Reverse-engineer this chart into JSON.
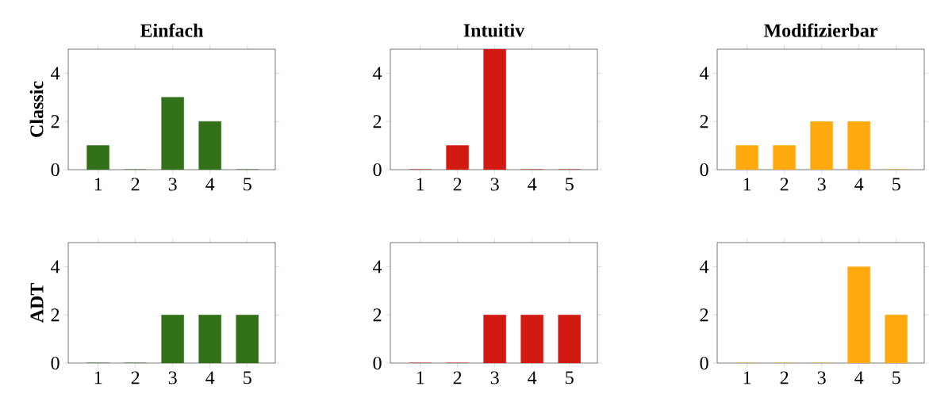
{
  "chart_data": [
    {
      "type": "bar",
      "title": "Einfach",
      "ylabel": "Classic",
      "x": [
        1,
        2,
        3,
        4,
        5
      ],
      "values": [
        1,
        0,
        3,
        2,
        0
      ],
      "color": "#33701a",
      "xlim": [
        0.2,
        5.75
      ],
      "ylim": [
        0,
        5
      ],
      "xticks": [
        1,
        2,
        3,
        4,
        5
      ],
      "yticks": [
        0,
        2,
        4
      ]
    },
    {
      "type": "bar",
      "title": "Intuitiv",
      "x": [
        1,
        2,
        3,
        4,
        5
      ],
      "values": [
        0,
        1,
        5,
        0,
        0
      ],
      "color": "#d31a12",
      "xlim": [
        0.2,
        5.75
      ],
      "ylim": [
        0,
        5
      ],
      "xticks": [
        1,
        2,
        3,
        4,
        5
      ],
      "yticks": [
        0,
        2,
        4
      ]
    },
    {
      "type": "bar",
      "title": "Modifizierbar",
      "x": [
        1,
        2,
        3,
        4,
        5
      ],
      "values": [
        1,
        1,
        2,
        2,
        0
      ],
      "color": "#ffa90d",
      "xlim": [
        0.2,
        5.75
      ],
      "ylim": [
        0,
        5
      ],
      "xticks": [
        1,
        2,
        3,
        4,
        5
      ],
      "yticks": [
        0,
        2,
        4
      ]
    },
    {
      "type": "bar",
      "ylabel": "ADT",
      "x": [
        1,
        2,
        3,
        4,
        5
      ],
      "values": [
        0,
        0,
        2,
        2,
        2
      ],
      "color": "#33701a",
      "xlim": [
        0.2,
        5.75
      ],
      "ylim": [
        0,
        5
      ],
      "xticks": [
        1,
        2,
        3,
        4,
        5
      ],
      "yticks": [
        0,
        2,
        4
      ]
    },
    {
      "type": "bar",
      "x": [
        1,
        2,
        3,
        4,
        5
      ],
      "values": [
        0,
        0,
        2,
        2,
        2
      ],
      "color": "#d31a12",
      "xlim": [
        0.2,
        5.75
      ],
      "ylim": [
        0,
        5
      ],
      "xticks": [
        1,
        2,
        3,
        4,
        5
      ],
      "yticks": [
        0,
        2,
        4
      ]
    },
    {
      "type": "bar",
      "x": [
        1,
        2,
        3,
        4,
        5
      ],
      "values": [
        0,
        0,
        0,
        4,
        2
      ],
      "color": "#ffa90d",
      "xlim": [
        0.2,
        5.75
      ],
      "ylim": [
        0,
        5
      ],
      "xticks": [
        1,
        2,
        3,
        4,
        5
      ],
      "yticks": [
        0,
        2,
        4
      ]
    }
  ]
}
